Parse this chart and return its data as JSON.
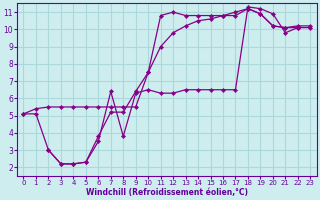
{
  "background_color": "#cdedef",
  "grid_color": "#aad8db",
  "line_color": "#880088",
  "marker_color": "#880088",
  "xlabel": "Windchill (Refroidissement éolien,°C)",
  "xlabel_color": "#660099",
  "tick_color": "#660099",
  "xlim": [
    -0.5,
    23.5
  ],
  "ylim": [
    1.5,
    11.5
  ],
  "xticks": [
    0,
    1,
    2,
    3,
    4,
    5,
    6,
    7,
    8,
    9,
    10,
    11,
    12,
    13,
    14,
    15,
    16,
    17,
    18,
    19,
    20,
    21,
    22,
    23
  ],
  "yticks": [
    2,
    3,
    4,
    5,
    6,
    7,
    8,
    9,
    10,
    11
  ],
  "series": [
    {
      "x": [
        0,
        1,
        2,
        3,
        4,
        5,
        6,
        7,
        8,
        9,
        10,
        11,
        12,
        13,
        14,
        15,
        16,
        17,
        18,
        19,
        20,
        21,
        22
      ],
      "y": [
        5.1,
        5.4,
        5.5,
        5.5,
        5.5,
        5.5,
        5.5,
        5.5,
        5.5,
        5.5,
        7.5,
        10.8,
        11.0,
        10.8,
        10.8,
        10.8,
        10.8,
        10.8,
        11.2,
        10.9,
        10.2,
        10.1,
        10.1
      ]
    },
    {
      "x": [
        0,
        1,
        2,
        3,
        4,
        5,
        6,
        7,
        8,
        9,
        10,
        11,
        12,
        13,
        14,
        15,
        16,
        17,
        18,
        19,
        20,
        21,
        22,
        23
      ],
      "y": [
        5.1,
        5.1,
        3.0,
        2.2,
        2.2,
        2.3,
        3.8,
        5.2,
        5.2,
        6.4,
        7.5,
        9.0,
        9.8,
        10.2,
        10.5,
        10.6,
        10.8,
        11.0,
        11.2,
        10.9,
        10.2,
        10.1,
        10.2,
        10.2
      ]
    },
    {
      "x": [
        2,
        3,
        4,
        5,
        6,
        7,
        8,
        9,
        10,
        11,
        12,
        13,
        14,
        15,
        16,
        17,
        18,
        19,
        20,
        21,
        22,
        23
      ],
      "y": [
        3.0,
        2.2,
        2.2,
        2.3,
        3.5,
        6.4,
        3.8,
        6.3,
        6.5,
        6.3,
        6.3,
        6.5,
        6.5,
        6.5,
        6.5,
        6.5,
        11.3,
        11.2,
        10.9,
        9.8,
        10.1,
        10.1
      ]
    }
  ]
}
